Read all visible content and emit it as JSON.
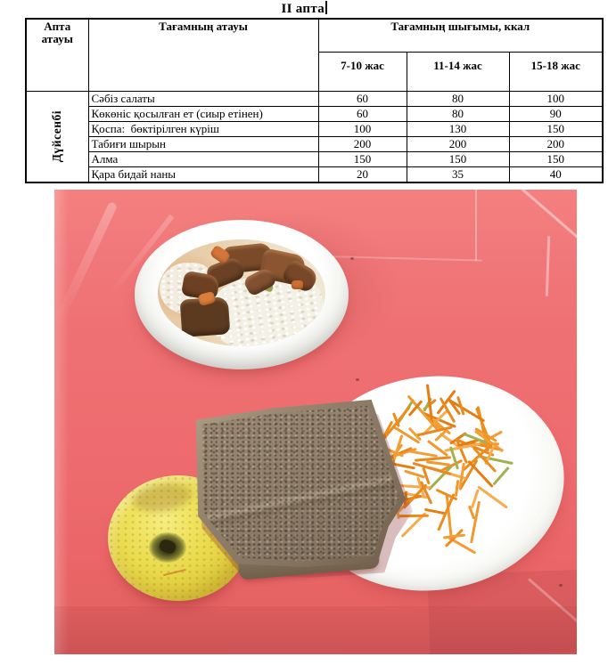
{
  "page": {
    "title": "II апта"
  },
  "table": {
    "header": {
      "week_col": "Апта атауы",
      "dish_col": "Тағамның атауы",
      "output_col": "Тағамның шығымы, ккал",
      "age_groups": [
        "7-10 жас",
        "11-14 жас",
        "15-18 жас"
      ]
    },
    "day": "Дүйсенбі",
    "rows": [
      {
        "dish": "Сәбіз салаты",
        "kcal": [
          "60",
          "80",
          "100"
        ]
      },
      {
        "dish": "Көкөніс қосылған ет (сиыр етінен)",
        "kcal": [
          "60",
          "80",
          "90"
        ]
      },
      {
        "dish": "Қоспа:  бөктірілген күріш",
        "kcal": [
          "100",
          "130",
          "150"
        ]
      },
      {
        "dish": "Табиғи шырын",
        "kcal": [
          "200",
          "200",
          "200"
        ]
      },
      {
        "dish": "Алма",
        "kcal": [
          "150",
          "150",
          "150"
        ]
      },
      {
        "dish": "Қара бидай наны",
        "kcal": [
          "20",
          "35",
          "40"
        ]
      }
    ]
  },
  "photo": {
    "description": "Lunch tray photo: bowl of rice with beef and vegetables, plate with a slice of rye bread and shredded carrot salad, and a yellow apple on a pink tray",
    "items": [
      {
        "name": "rice-and-meat-bowl"
      },
      {
        "name": "carrot-salad-plate"
      },
      {
        "name": "rye-bread-slice"
      },
      {
        "name": "yellow-apple"
      }
    ],
    "colors": {
      "tray_pink": "#ee6c6f",
      "carrot_orange": "#ef8c1c",
      "apple_yellow": "#e9d94b",
      "bread_brown": "#8f7f6c",
      "meat_brown": "#6e4023",
      "rice_white": "#f3f0e5",
      "plate_white": "#fbfbf9"
    }
  }
}
